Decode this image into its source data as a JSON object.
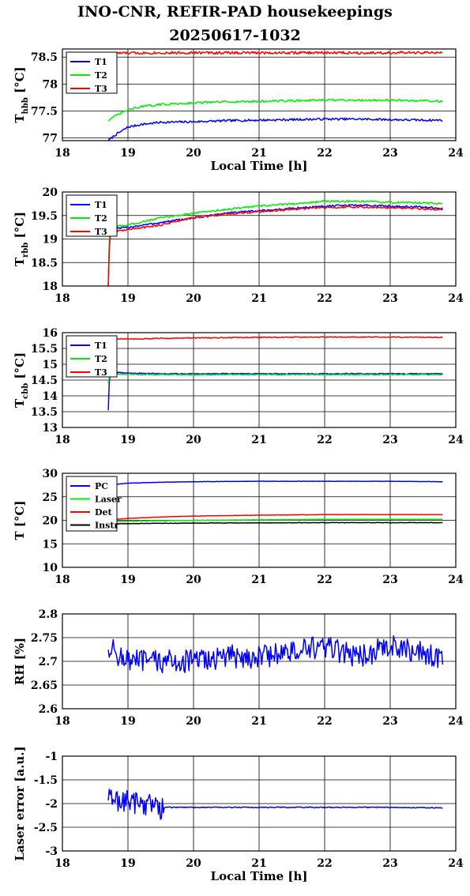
{
  "title": {
    "line1": "INO-CNR, REFIR-PAD housekeepings",
    "line2": "20250617-1032"
  },
  "colors": {
    "blue": "#0000ff",
    "green": "#00ee00",
    "red": "#ff0000",
    "black": "#000000"
  },
  "chart_data": [
    {
      "type": "line",
      "ylabel": "Thbb [°C]",
      "ylabel_main": "T",
      "ylabel_sub": "hbb",
      "ylabel_tail": " [°C]",
      "xlabel": "Local Time [h]",
      "xlim": [
        18,
        24
      ],
      "ylim": [
        76.95,
        78.65
      ],
      "xticks": [
        18,
        19,
        20,
        21,
        22,
        23,
        24
      ],
      "yticks": [
        77,
        77.5,
        78,
        78.5
      ],
      "ytick_labels": [
        "77",
        "77.5",
        "78",
        "78.5"
      ],
      "grid": true,
      "legend_position": "top-left",
      "series": [
        {
          "name": "T1",
          "color": "#0000ff",
          "x": [
            18.7,
            18.8,
            19.0,
            19.2,
            19.5,
            20.0,
            20.5,
            21.0,
            21.5,
            22.0,
            22.5,
            23.0,
            23.5,
            23.8
          ],
          "y": [
            76.95,
            77.05,
            77.2,
            77.25,
            77.29,
            77.3,
            77.32,
            77.33,
            77.34,
            77.35,
            77.35,
            77.34,
            77.33,
            77.33
          ],
          "noise": 0.02
        },
        {
          "name": "T2",
          "color": "#00ee00",
          "x": [
            18.7,
            18.8,
            19.0,
            19.2,
            19.5,
            20.0,
            20.5,
            21.0,
            21.5,
            22.0,
            22.5,
            23.0,
            23.5,
            23.8
          ],
          "y": [
            77.33,
            77.4,
            77.52,
            77.58,
            77.62,
            77.65,
            77.67,
            77.68,
            77.69,
            77.7,
            77.7,
            77.7,
            77.69,
            77.68
          ],
          "noise": 0.02
        },
        {
          "name": "T3",
          "color": "#ff0000",
          "x": [
            18.7,
            19.5,
            20.5,
            21.5,
            22.5,
            23.8
          ],
          "y": [
            78.57,
            78.58,
            78.58,
            78.58,
            78.58,
            78.58
          ],
          "noise": 0.025
        }
      ]
    },
    {
      "type": "line",
      "ylabel": "Trbb [°C]",
      "ylabel_main": "T",
      "ylabel_sub": "rbb",
      "ylabel_tail": " [°C]",
      "xlabel": "",
      "xlim": [
        18,
        24
      ],
      "ylim": [
        18,
        20
      ],
      "xticks": [
        18,
        19,
        20,
        21,
        22,
        23,
        24
      ],
      "yticks": [
        18,
        18.5,
        19,
        19.5,
        20
      ],
      "ytick_labels": [
        "18",
        "18.5",
        "19",
        "19.5",
        "20"
      ],
      "grid": true,
      "legend_position": "top-left",
      "series": [
        {
          "name": "T1",
          "color": "#0000ff",
          "x": [
            18.7,
            18.72,
            18.75,
            19.0,
            19.5,
            20.0,
            20.5,
            21.0,
            21.5,
            22.0,
            22.5,
            23.0,
            23.5,
            23.8
          ],
          "y": [
            18.0,
            19.1,
            19.2,
            19.25,
            19.35,
            19.45,
            19.55,
            19.6,
            19.65,
            19.7,
            19.72,
            19.7,
            19.68,
            19.65
          ],
          "noise": 0.02
        },
        {
          "name": "T2",
          "color": "#00ee00",
          "x": [
            18.7,
            18.72,
            18.75,
            19.0,
            19.5,
            20.0,
            20.5,
            21.0,
            21.5,
            22.0,
            22.5,
            23.0,
            23.5,
            23.8
          ],
          "y": [
            18.05,
            19.2,
            19.25,
            19.3,
            19.45,
            19.55,
            19.63,
            19.7,
            19.75,
            19.8,
            19.8,
            19.78,
            19.77,
            19.75
          ],
          "noise": 0.02
        },
        {
          "name": "T3",
          "color": "#ff0000",
          "x": [
            18.7,
            18.72,
            18.75,
            19.0,
            19.5,
            20.0,
            20.5,
            21.0,
            21.5,
            22.0,
            22.5,
            23.0,
            23.5,
            23.8
          ],
          "y": [
            18.0,
            19.0,
            19.15,
            19.2,
            19.3,
            19.45,
            19.53,
            19.58,
            19.63,
            19.67,
            19.68,
            19.67,
            19.64,
            19.62
          ],
          "noise": 0.02
        }
      ]
    },
    {
      "type": "line",
      "ylabel": "Tcbb [°C]",
      "ylabel_main": "T",
      "ylabel_sub": "cbb",
      "ylabel_tail": " [°C]",
      "xlabel": "",
      "xlim": [
        18,
        24
      ],
      "ylim": [
        13,
        16
      ],
      "xticks": [
        18,
        19,
        20,
        21,
        22,
        23,
        24
      ],
      "yticks": [
        13,
        13.5,
        14,
        14.5,
        15,
        15.5,
        16
      ],
      "ytick_labels": [
        "13",
        "13.5",
        "14",
        "14.5",
        "15",
        "15.5",
        "16"
      ],
      "grid": true,
      "legend_position": "top-left",
      "series": [
        {
          "name": "T1",
          "color": "#0000ff",
          "x": [
            18.7,
            18.72,
            18.75,
            19.0,
            19.5,
            20.0,
            21.0,
            22.0,
            23.0,
            23.8
          ],
          "y": [
            13.55,
            14.7,
            14.75,
            14.72,
            14.7,
            14.7,
            14.7,
            14.7,
            14.7,
            14.7
          ],
          "noise": 0.015
        },
        {
          "name": "T2",
          "color": "#00ee00",
          "x": [
            18.7,
            18.72,
            18.75,
            19.0,
            19.5,
            20.0,
            21.0,
            22.0,
            23.0,
            23.8
          ],
          "y": [
            14.4,
            14.65,
            14.68,
            14.68,
            14.67,
            14.67,
            14.67,
            14.67,
            14.67,
            14.67
          ],
          "noise": 0.015
        },
        {
          "name": "T3",
          "color": "#ff0000",
          "x": [
            18.7,
            19.0,
            20.0,
            21.0,
            22.0,
            23.0,
            23.8
          ],
          "y": [
            15.8,
            15.8,
            15.83,
            15.85,
            15.86,
            15.86,
            15.85
          ],
          "noise": 0.015
        }
      ]
    },
    {
      "type": "line",
      "ylabel": "T [°C]",
      "ylabel_main": "T",
      "ylabel_sub": "",
      "ylabel_tail": " [°C]",
      "xlabel": "",
      "xlim": [
        18,
        24
      ],
      "ylim": [
        10,
        30
      ],
      "xticks": [
        18,
        19,
        20,
        21,
        22,
        23,
        24
      ],
      "yticks": [
        10,
        15,
        20,
        25,
        30
      ],
      "ytick_labels": [
        "10",
        "15",
        "20",
        "25",
        "30"
      ],
      "grid": true,
      "legend_position": "top-left",
      "series": [
        {
          "name": "PC",
          "color": "#0000ff",
          "x": [
            18.7,
            19.0,
            19.5,
            20.0,
            21.0,
            22.0,
            23.0,
            23.8
          ],
          "y": [
            27.5,
            27.9,
            28.1,
            28.2,
            28.3,
            28.3,
            28.3,
            28.2
          ],
          "noise": 0.03
        },
        {
          "name": "Laser",
          "color": "#00ee00",
          "x": [
            18.7,
            19.0,
            20.0,
            21.0,
            22.0,
            23.0,
            23.8
          ],
          "y": [
            19.7,
            19.8,
            20.0,
            20.1,
            20.2,
            20.2,
            20.2
          ],
          "noise": 0.03
        },
        {
          "name": "Det",
          "color": "#ff0000",
          "x": [
            18.7,
            19.0,
            19.5,
            20.0,
            20.5,
            21.0,
            22.0,
            23.0,
            23.8
          ],
          "y": [
            20.1,
            20.4,
            20.7,
            20.9,
            21.0,
            21.1,
            21.2,
            21.2,
            21.2
          ],
          "noise": 0.03
        },
        {
          "name": "Instr",
          "color": "#000000",
          "x": [
            18.7,
            19.0,
            20.0,
            21.0,
            22.0,
            23.0,
            23.8
          ],
          "y": [
            19.2,
            19.3,
            19.4,
            19.45,
            19.5,
            19.5,
            19.5
          ],
          "noise": 0.04
        }
      ]
    },
    {
      "type": "line",
      "ylabel": "RH [%]",
      "ylabel_main": "RH [%]",
      "ylabel_sub": "",
      "ylabel_tail": "",
      "xlabel": "",
      "xlim": [
        18,
        24
      ],
      "ylim": [
        2.6,
        2.8
      ],
      "xticks": [
        18,
        19,
        20,
        21,
        22,
        23,
        24
      ],
      "yticks": [
        2.6,
        2.65,
        2.7,
        2.75,
        2.8
      ],
      "ytick_labels": [
        "2.6",
        "2.65",
        "2.7",
        "2.75",
        "2.8"
      ],
      "grid": true,
      "legend_position": "none",
      "series": [
        {
          "name": "",
          "color": "#0000ff",
          "x": [
            18.7,
            19.0,
            19.5,
            20.0,
            20.5,
            21.0,
            21.5,
            22.0,
            22.5,
            23.0,
            23.5,
            23.8
          ],
          "y": [
            2.73,
            2.7,
            2.7,
            2.7,
            2.71,
            2.71,
            2.72,
            2.73,
            2.71,
            2.73,
            2.72,
            2.7
          ],
          "noise": 0.025
        }
      ]
    },
    {
      "type": "line",
      "ylabel": "Laser error [a.u.]",
      "ylabel_main": "Laser error [a.u.]",
      "ylabel_sub": "",
      "ylabel_tail": "",
      "xlabel": "Local Time [h]",
      "xlim": [
        18,
        24
      ],
      "ylim": [
        -3,
        -1
      ],
      "xticks": [
        18,
        19,
        20,
        21,
        22,
        23,
        24
      ],
      "yticks": [
        -3,
        -2.5,
        -2,
        -1.5,
        -1
      ],
      "ytick_labels": [
        "-3",
        "-2.5",
        "-2",
        "-1.5",
        "-1"
      ],
      "grid": true,
      "legend_position": "none",
      "series": [
        {
          "name": "",
          "color": "#0000ff",
          "x": [
            18.7,
            19.0,
            19.3,
            19.52,
            19.55,
            20.0,
            21.0,
            22.0,
            23.0,
            23.8
          ],
          "y": [
            -1.9,
            -1.95,
            -2.0,
            -2.1,
            -2.08,
            -2.08,
            -2.08,
            -2.08,
            -2.08,
            -2.09
          ],
          "noise": 0.01,
          "noisy_until": 19.55,
          "noisy_amp": 0.25
        }
      ]
    }
  ]
}
